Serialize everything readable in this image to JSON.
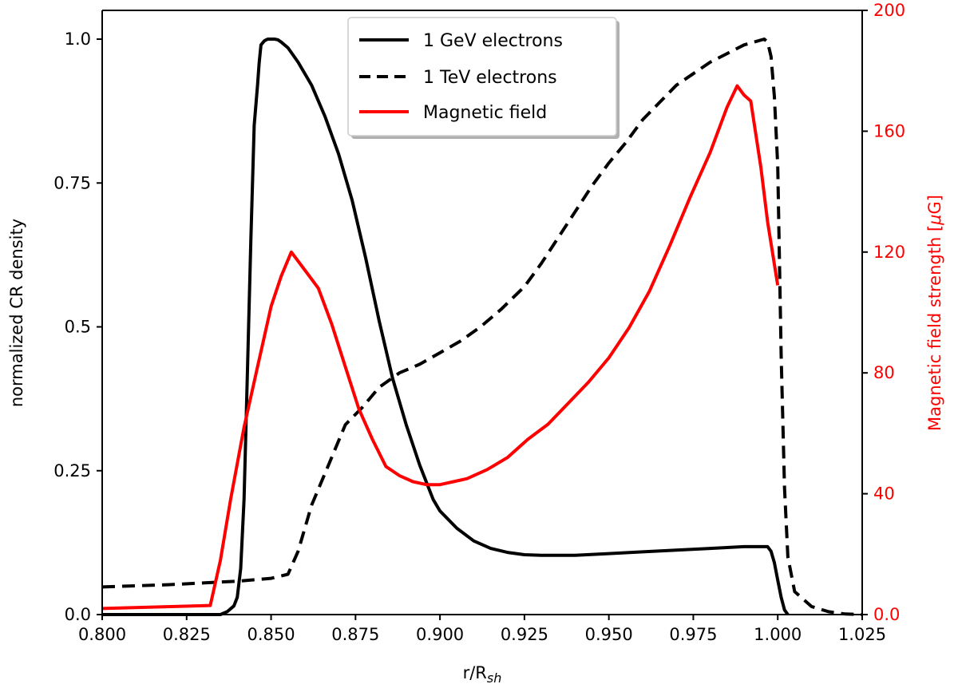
{
  "chart_data": {
    "type": "line",
    "xlabel": "r/R",
    "xlabel_sub": "sh",
    "ylabel_left": "normalized CR density",
    "ylabel_right_pre": "Magnetic field strength [",
    "ylabel_right_mu": "μ",
    "ylabel_right_post": "G]",
    "xlim": [
      0.8,
      1.025
    ],
    "ylim_left": [
      0.0,
      1.05
    ],
    "ylim_right": [
      0,
      200
    ],
    "xticks": [
      0.8,
      0.825,
      0.85,
      0.875,
      0.9,
      0.925,
      0.95,
      0.975,
      1.0,
      1.025
    ],
    "xtick_labels": [
      "0.800",
      "0.825",
      "0.850",
      "0.875",
      "0.900",
      "0.925",
      "0.950",
      "0.975",
      "1.000",
      "1.025"
    ],
    "yticks_left": [
      0.0,
      0.25,
      0.5,
      0.75,
      1.0
    ],
    "ytick_labels_left": [
      "0.0",
      "0.25",
      "0.5",
      "0.75",
      "1.0"
    ],
    "yticks_right": [
      0,
      40,
      80,
      120,
      160,
      200
    ],
    "ytick_labels_right": [
      "0.0",
      "40",
      "80",
      "120",
      "160",
      "200"
    ],
    "legend_position": "top-center",
    "grid": false,
    "series": [
      {
        "name": "1 GeV electrons",
        "axis": "left",
        "color": "#000000",
        "style": "solid",
        "x": [
          0.8,
          0.83,
          0.835,
          0.837,
          0.839,
          0.84,
          0.841,
          0.842,
          0.843,
          0.844,
          0.845,
          0.846,
          0.8465,
          0.847,
          0.848,
          0.849,
          0.85,
          0.851,
          0.852,
          0.853,
          0.855,
          0.858,
          0.862,
          0.866,
          0.87,
          0.874,
          0.878,
          0.882,
          0.886,
          0.89,
          0.894,
          0.898,
          0.9,
          0.905,
          0.91,
          0.915,
          0.92,
          0.925,
          0.93,
          0.94,
          0.95,
          0.96,
          0.97,
          0.98,
          0.99,
          0.997,
          0.998,
          0.999,
          1.0,
          1.001,
          1.002,
          1.003
        ],
        "y": [
          0.0,
          0.0,
          0.0,
          0.005,
          0.015,
          0.03,
          0.08,
          0.2,
          0.42,
          0.65,
          0.85,
          0.92,
          0.96,
          0.99,
          0.997,
          1.0,
          1.0,
          1.0,
          0.999,
          0.995,
          0.985,
          0.96,
          0.92,
          0.865,
          0.8,
          0.72,
          0.62,
          0.51,
          0.41,
          0.33,
          0.26,
          0.2,
          0.18,
          0.15,
          0.128,
          0.115,
          0.108,
          0.104,
          0.103,
          0.103,
          0.106,
          0.109,
          0.112,
          0.115,
          0.118,
          0.118,
          0.11,
          0.09,
          0.06,
          0.03,
          0.008,
          0.0
        ]
      },
      {
        "name": "1 TeV electrons",
        "axis": "left",
        "color": "#000000",
        "style": "dashed",
        "x": [
          0.8,
          0.82,
          0.84,
          0.85,
          0.855,
          0.858,
          0.862,
          0.867,
          0.872,
          0.877,
          0.882,
          0.888,
          0.894,
          0.9,
          0.906,
          0.912,
          0.918,
          0.925,
          0.93,
          0.935,
          0.94,
          0.945,
          0.95,
          0.955,
          0.96,
          0.965,
          0.97,
          0.975,
          0.98,
          0.985,
          0.99,
          0.996,
          0.997,
          0.998,
          0.999,
          1.0,
          1.001,
          1.002,
          1.003,
          1.005,
          1.01,
          1.015,
          1.02,
          1.025
        ],
        "y": [
          0.048,
          0.052,
          0.058,
          0.063,
          0.07,
          0.11,
          0.19,
          0.26,
          0.33,
          0.36,
          0.395,
          0.42,
          0.435,
          0.455,
          0.475,
          0.5,
          0.53,
          0.57,
          0.61,
          0.655,
          0.7,
          0.745,
          0.785,
          0.82,
          0.86,
          0.89,
          0.92,
          0.94,
          0.96,
          0.975,
          0.99,
          1.0,
          0.995,
          0.97,
          0.9,
          0.78,
          0.45,
          0.22,
          0.1,
          0.04,
          0.014,
          0.005,
          0.001,
          0.0
        ]
      },
      {
        "name": "Magnetic field",
        "axis": "right",
        "color": "#ff0000",
        "style": "solid",
        "x": [
          0.8,
          0.832,
          0.835,
          0.838,
          0.842,
          0.846,
          0.85,
          0.853,
          0.856,
          0.86,
          0.864,
          0.868,
          0.872,
          0.876,
          0.88,
          0.884,
          0.888,
          0.892,
          0.896,
          0.9,
          0.904,
          0.908,
          0.914,
          0.92,
          0.926,
          0.932,
          0.938,
          0.944,
          0.95,
          0.956,
          0.962,
          0.968,
          0.974,
          0.98,
          0.985,
          0.988,
          0.99,
          0.992,
          0.995,
          0.997,
          1.0
        ],
        "y": [
          2,
          3,
          18,
          38,
          62,
          82,
          102,
          112,
          120,
          114,
          108,
          96,
          82,
          68,
          58,
          49,
          46,
          44,
          43,
          43,
          44,
          45,
          48,
          52,
          58,
          63,
          70,
          77,
          85,
          95,
          107,
          122,
          138,
          153,
          168,
          175,
          172,
          170,
          148,
          130,
          109
        ]
      }
    ]
  }
}
